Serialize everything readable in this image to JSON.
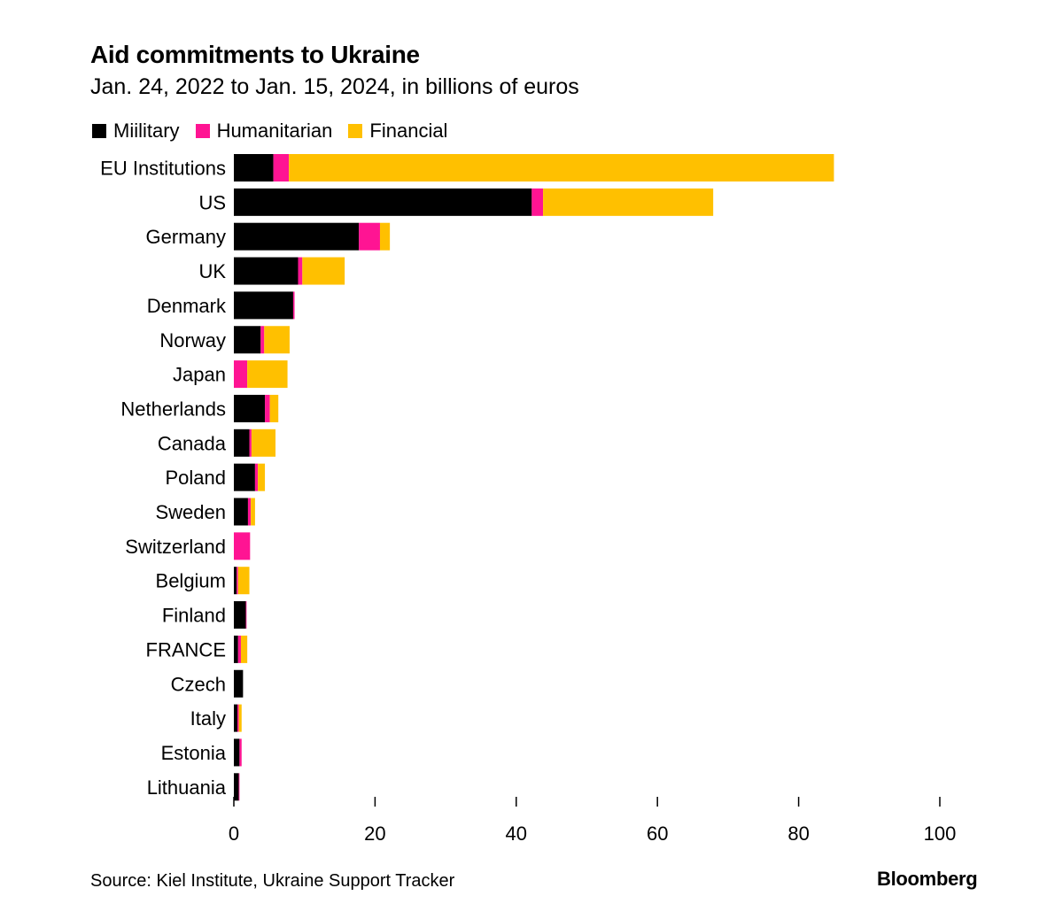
{
  "title": "Aid commitments to Ukraine",
  "subtitle": "Jan. 24, 2022 to Jan. 15, 2024, in billions of euros",
  "footer": {
    "source": "Source: Kiel Institute, Ukraine Support Tracker",
    "brand": "Bloomberg"
  },
  "colors": {
    "military": "#000000",
    "humanitarian": "#ff1493",
    "financial": "#ffc000"
  },
  "chart_data": {
    "type": "bar",
    "orientation": "horizontal",
    "stacked": true,
    "title": "Aid commitments to Ukraine",
    "subtitle": "Jan. 24, 2022 to Jan. 15, 2024, in billions of euros",
    "legend_position": "top-left",
    "grid": false,
    "xlim": [
      0,
      100
    ],
    "xticks": [
      0,
      20,
      40,
      60,
      80,
      100
    ],
    "categories": [
      "EU Institutions",
      "US",
      "Germany",
      "UK",
      "Denmark",
      "Norway",
      "Japan",
      "Netherlands",
      "Canada",
      "Poland",
      "Sweden",
      "Switzerland",
      "Belgium",
      "Finland",
      "FRANCE",
      "Czech",
      "Italy",
      "Estonia",
      "Lithuania"
    ],
    "series": [
      {
        "name": "Miilitary",
        "color": "#000000",
        "values": [
          5.6,
          42.2,
          17.7,
          9.1,
          8.4,
          3.8,
          0.0,
          4.4,
          2.2,
          3.0,
          2.0,
          0.0,
          0.4,
          1.7,
          0.6,
          1.3,
          0.5,
          0.8,
          0.7
        ]
      },
      {
        "name": "Humanitarian",
        "color": "#ff1493",
        "values": [
          2.2,
          1.6,
          3.0,
          0.6,
          0.2,
          0.5,
          1.9,
          0.7,
          0.3,
          0.4,
          0.4,
          2.3,
          0.2,
          0.1,
          0.4,
          0.0,
          0.2,
          0.3,
          0.1
        ]
      },
      {
        "name": "Financial",
        "color": "#ffc000",
        "values": [
          77.2,
          24.1,
          1.4,
          6.0,
          0.0,
          3.6,
          5.7,
          1.2,
          3.4,
          1.0,
          0.6,
          0.0,
          1.6,
          0.0,
          0.9,
          0.0,
          0.4,
          0.0,
          0.0
        ]
      }
    ]
  }
}
